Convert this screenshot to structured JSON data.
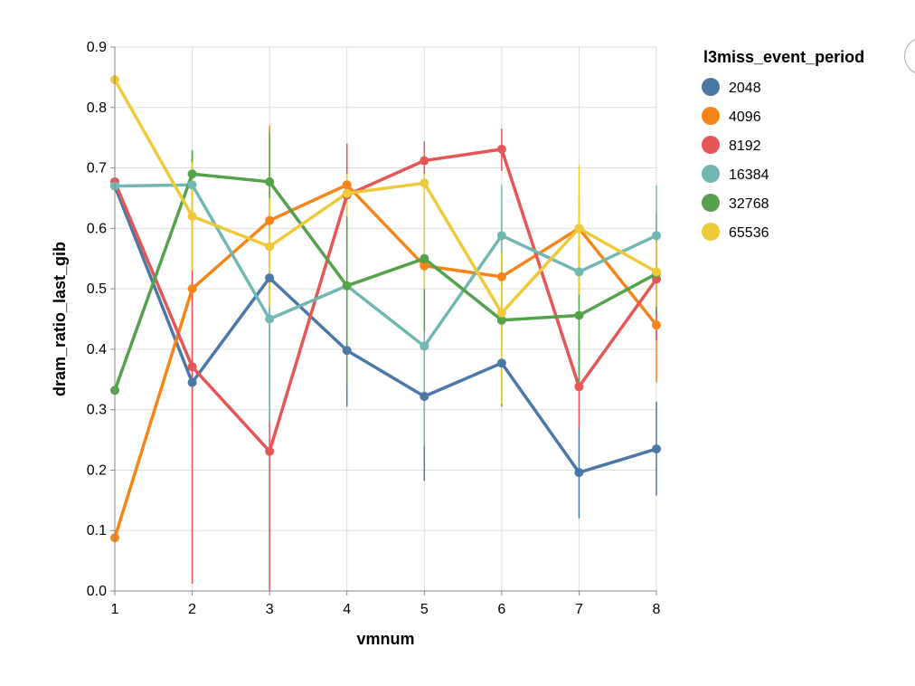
{
  "chart_data": {
    "type": "line",
    "xlabel": "vmnum",
    "ylabel": "dram_ratio_last_gib",
    "x": [
      1,
      2,
      3,
      4,
      5,
      6,
      7,
      8
    ],
    "xlim": [
      1,
      8
    ],
    "ylim": [
      0,
      0.9
    ],
    "yticks": [
      "0.0",
      "0.1",
      "0.2",
      "0.3",
      "0.4",
      "0.5",
      "0.6",
      "0.7",
      "0.8",
      "0.9"
    ],
    "xticks": [
      "1",
      "2",
      "3",
      "4",
      "5",
      "6",
      "7",
      "8"
    ],
    "grid": true,
    "legend_title": "l3miss_event_period",
    "legend_placement": "right",
    "series": [
      {
        "name": "2048",
        "color": "#4c78a8",
        "values": [
          0.67,
          0.345,
          0.518,
          0.398,
          0.322,
          0.377,
          0.196,
          0.235
        ],
        "error_low": [
          null,
          null,
          null,
          0.305,
          0.182,
          null,
          0.12,
          0.158
        ],
        "error_high": [
          null,
          null,
          null,
          0.49,
          0.46,
          null,
          0.27,
          0.313
        ]
      },
      {
        "name": "4096",
        "color": "#f58518",
        "values": [
          0.088,
          0.5,
          0.613,
          0.672,
          0.538,
          0.52,
          0.6,
          0.44
        ],
        "error_low": [
          null,
          0.27,
          0.34,
          0.55,
          0.42,
          0.41,
          0.5,
          0.345
        ],
        "error_high": [
          null,
          0.7,
          0.77,
          0.74,
          0.65,
          0.63,
          0.65,
          0.525
        ]
      },
      {
        "name": "8192",
        "color": "#e45756",
        "values": [
          0.677,
          0.371,
          0.231,
          0.655,
          0.712,
          0.731,
          0.338,
          0.516
        ],
        "error_low": [
          null,
          0.012,
          0.0,
          0.56,
          0.68,
          0.695,
          0.27,
          0.415
        ],
        "error_high": [
          null,
          0.728,
          0.53,
          0.74,
          0.744,
          0.765,
          0.42,
          0.624
        ]
      },
      {
        "name": "16384",
        "color": "#72b7b2",
        "values": [
          0.67,
          0.672,
          0.45,
          0.505,
          0.405,
          0.588,
          0.528,
          0.588
        ],
        "error_low": [
          null,
          0.62,
          0.28,
          0.4,
          0.24,
          0.5,
          0.48,
          0.51
        ],
        "error_high": [
          null,
          0.72,
          0.62,
          0.6,
          0.57,
          0.672,
          0.58,
          0.671
        ]
      },
      {
        "name": "32768",
        "color": "#54a24b",
        "values": [
          0.332,
          0.69,
          0.677,
          0.505,
          0.55,
          0.448,
          0.456,
          0.525
        ],
        "error_low": [
          null,
          0.65,
          0.6,
          0.34,
          0.43,
          0.305,
          0.34,
          0.46
        ],
        "error_high": [
          null,
          0.73,
          0.76,
          0.68,
          0.68,
          0.56,
          0.57,
          0.59
        ]
      },
      {
        "name": "65536",
        "color": "#eeca3b",
        "values": [
          0.846,
          0.62,
          0.57,
          0.658,
          0.675,
          0.46,
          0.6,
          0.528
        ],
        "error_low": [
          null,
          0.53,
          0.47,
          0.62,
          0.5,
          0.31,
          0.49,
          0.47
        ],
        "error_high": [
          null,
          0.71,
          0.65,
          0.69,
          0.69,
          0.56,
          0.705,
          0.58
        ]
      }
    ]
  }
}
